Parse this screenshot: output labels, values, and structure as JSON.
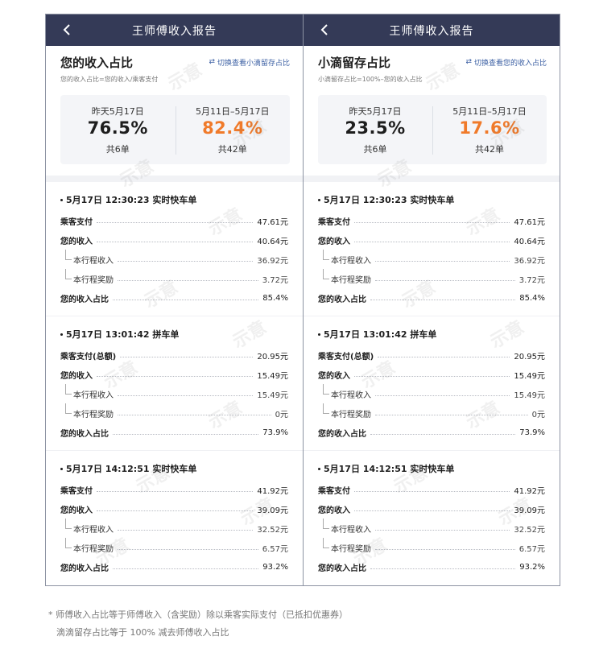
{
  "panels": [
    {
      "header_title": "王师傅收入报告",
      "section_title": "您的收入占比",
      "switch_label": "切换查看小滴留存占比",
      "formula": "您的收入占比=您的收入/乘客支付",
      "stats": [
        {
          "date": "昨天5月17日",
          "value": "76.5%",
          "count": "共6单"
        },
        {
          "date": "5月11日–5月17日",
          "value": "82.4%",
          "count": "共42单"
        }
      ],
      "last_row_label": "您的收入占比",
      "orders": [
        {
          "time": "5月17日 12:30:23 实时快车单",
          "pay_label": "乘客支付",
          "pay": "47.61元",
          "income": "40.64元",
          "trip": "36.92元",
          "bonus": "3.72元",
          "ratio": "85.4%"
        },
        {
          "time": "5月17日 13:01:42 拼车单",
          "pay_label": "乘客支付(总额)",
          "pay": "20.95元",
          "income": "15.49元",
          "trip": "15.49元",
          "bonus": "0元",
          "ratio": "73.9%"
        },
        {
          "time": "5月17日 14:12:51 实时快车单",
          "pay_label": "乘客支付",
          "pay": "41.92元",
          "income": "39.09元",
          "trip": "32.52元",
          "bonus": "6.57元",
          "ratio": "93.2%"
        }
      ]
    },
    {
      "header_title": "王师傅收入报告",
      "section_title": "小滴留存占比",
      "switch_label": "切换查看您的收入占比",
      "formula": "小滴留存占比=100%–您的收入占比",
      "stats": [
        {
          "date": "昨天5月17日",
          "value": "23.5%",
          "count": "共6单"
        },
        {
          "date": "5月11日–5月17日",
          "value": "17.6%",
          "count": "共42单"
        }
      ],
      "last_row_label": "您的收入占比",
      "orders": [
        {
          "time": "5月17日 12:30:23 实时快车单",
          "pay_label": "乘客支付",
          "pay": "47.61元",
          "income": "40.64元",
          "trip": "36.92元",
          "bonus": "3.72元",
          "ratio": "85.4%"
        },
        {
          "time": "5月17日 13:01:42 拼车单",
          "pay_label": "乘客支付(总额)",
          "pay": "20.95元",
          "income": "15.49元",
          "trip": "15.49元",
          "bonus": "0元",
          "ratio": "73.9%"
        },
        {
          "time": "5月17日 14:12:51 实时快车单",
          "pay_label": "乘客支付",
          "pay": "41.92元",
          "income": "39.09元",
          "trip": "32.52元",
          "bonus": "6.57元",
          "ratio": "93.2%"
        }
      ]
    }
  ],
  "labels": {
    "income": "您的收入",
    "trip": "本行程收入",
    "bonus": "本行程奖励"
  },
  "watermark_text": "示意",
  "footnote": {
    "line1": "* 师傅收入占比等于师傅收入（含奖励）除以乘客实际支付（已抵扣优惠券）",
    "line2": "滴滴留存占比等于 100% 减去师傅收入占比"
  },
  "colors": {
    "header_bg": "#343a57",
    "accent_orange": "#f07a2a",
    "link_blue": "#3b5fa3"
  },
  "icons": {
    "back": "chevron-left-icon",
    "switch": "swap-arrows-icon"
  }
}
